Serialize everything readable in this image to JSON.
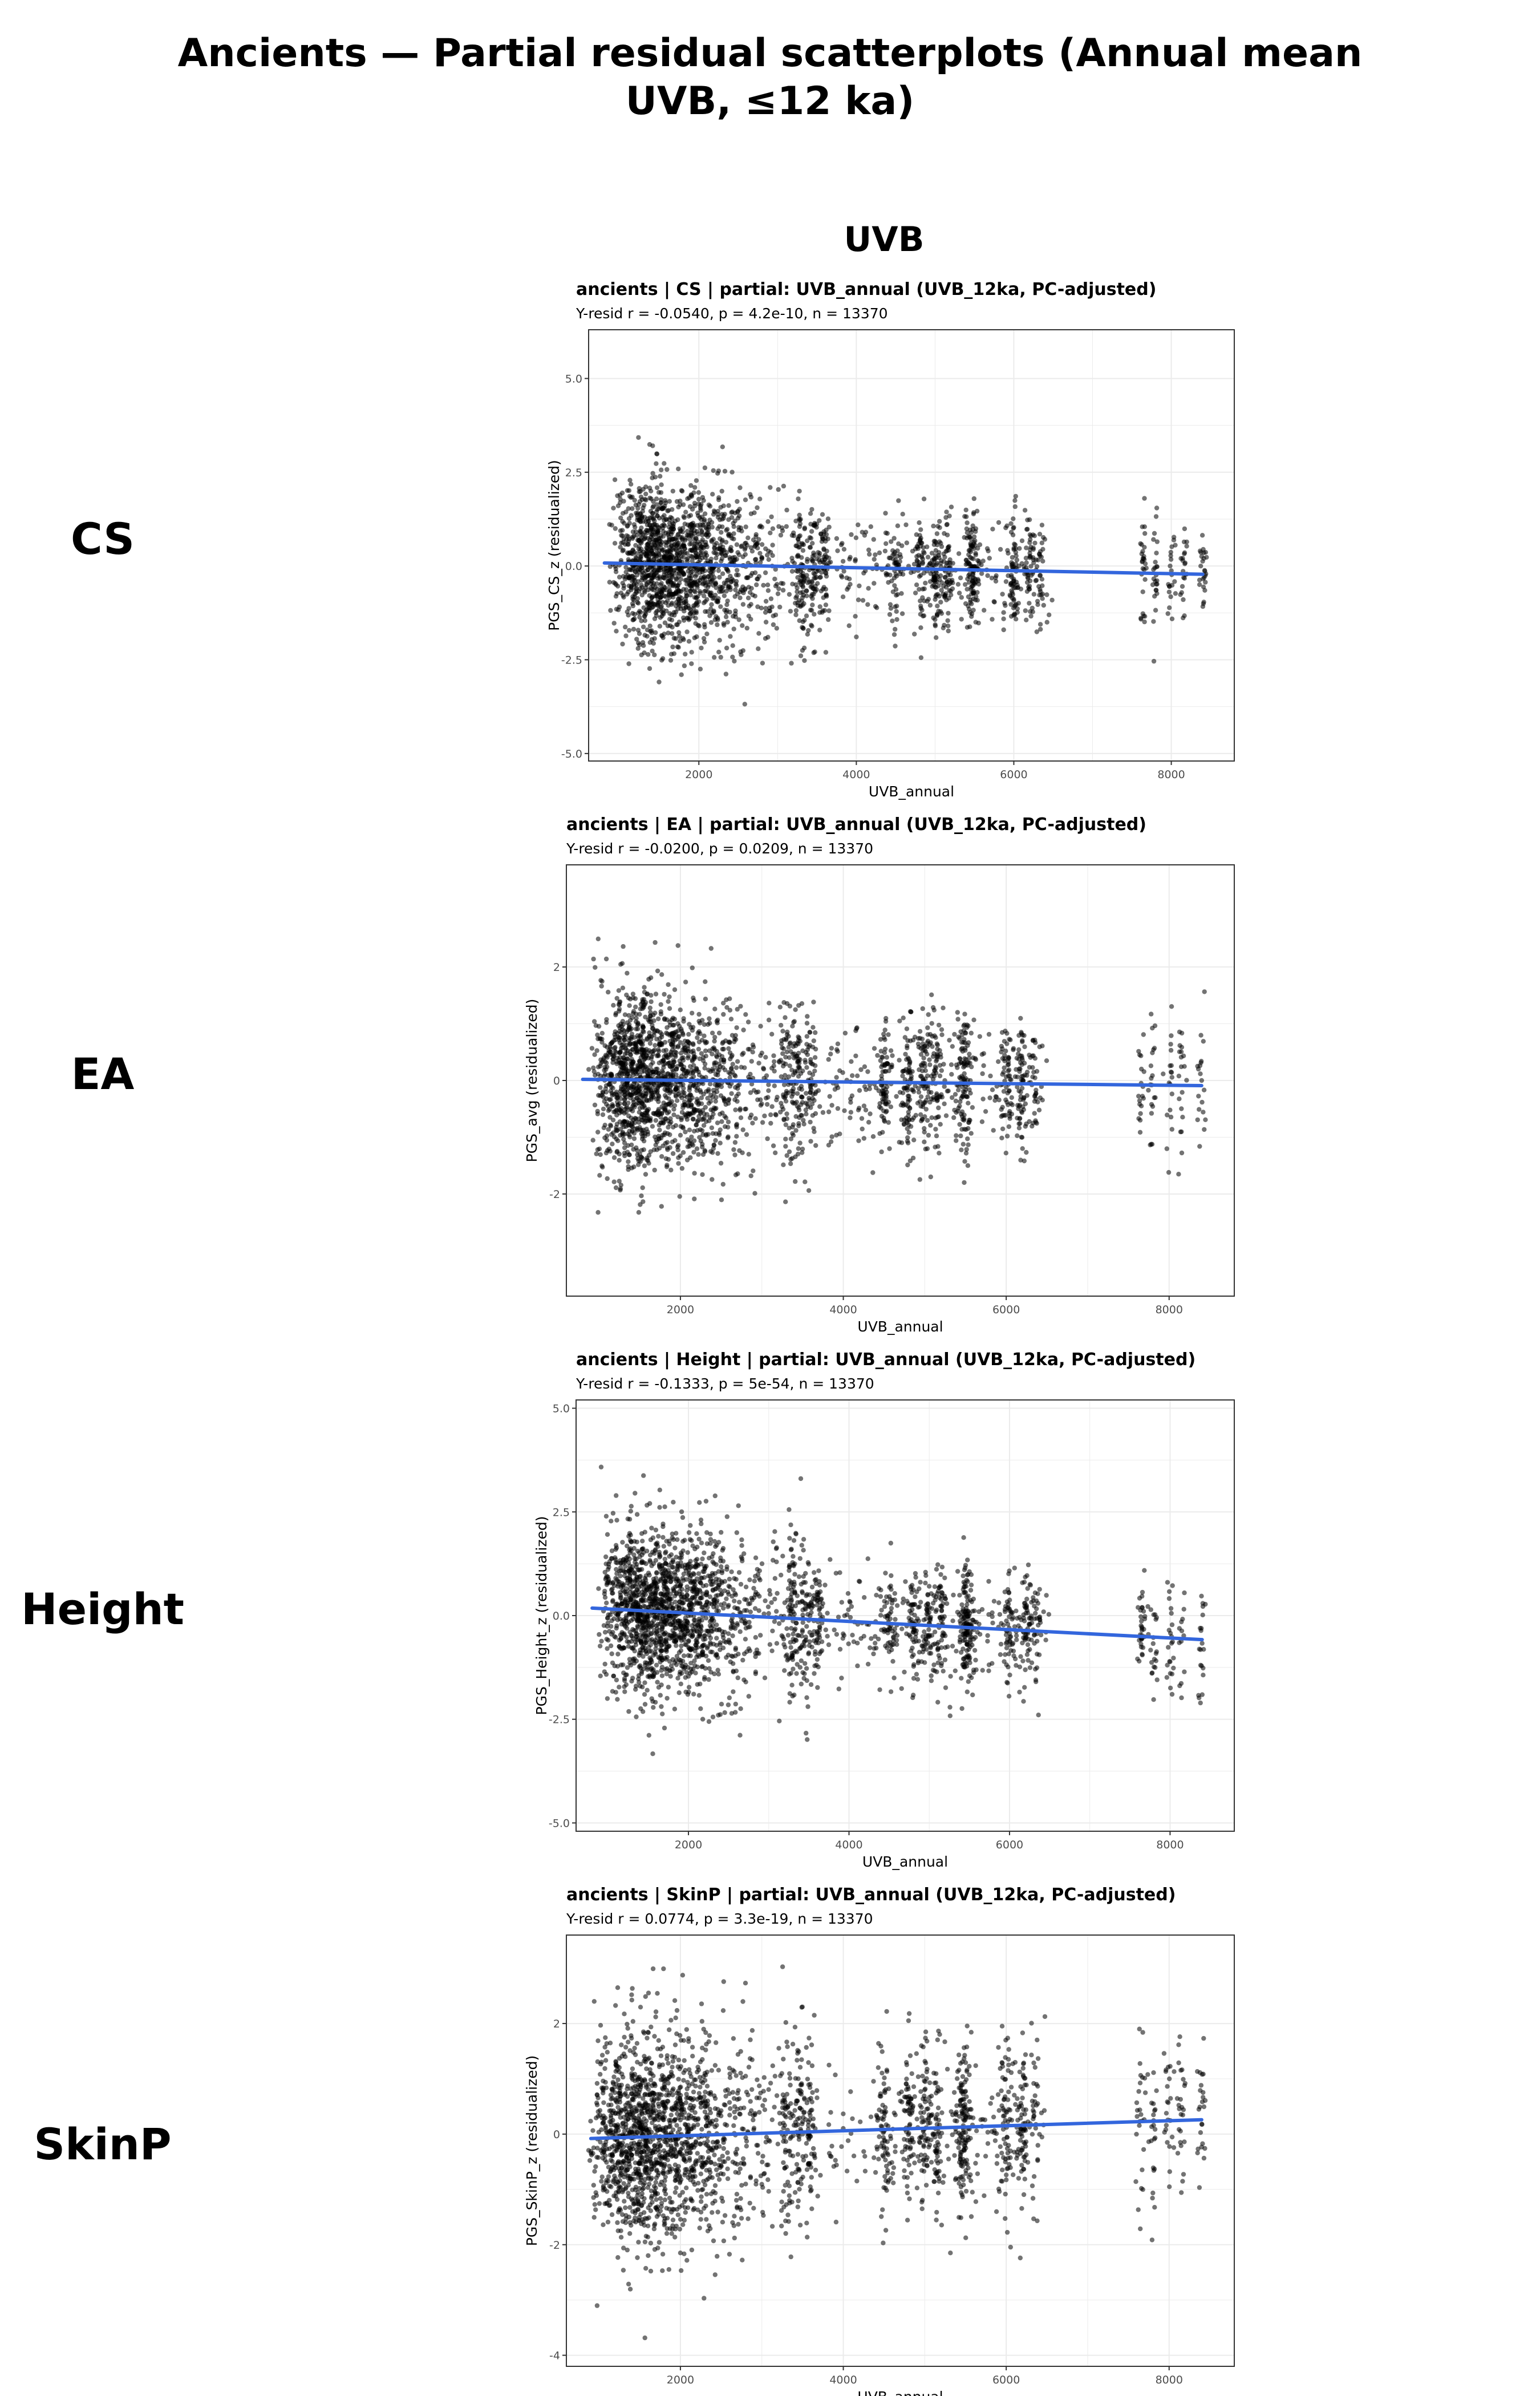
{
  "title_line1": "Ancients — Partial residual scatterplots (Annual mean",
  "title_line2": "UVB, ≤12 ka)",
  "column_title": "UVB",
  "colors": {
    "points": "#000000",
    "fit_line": "#3366dd",
    "grid": "#ebebeb",
    "panel_border": "#333333"
  },
  "chart_data": [
    {
      "type": "scatter",
      "row_label": "CS",
      "title": "ancients | CS | partial: UVB_annual (UVB_12ka, PC-adjusted)",
      "subtitle": "Y-resid r = -0.0540, p = 4.2e-10, n = 13370",
      "xlabel": "UVB_annual",
      "ylabel": "PGS_CS_z (residualized)",
      "xlim": [
        600,
        8800
      ],
      "ylim": [
        -5.2,
        6.3
      ],
      "xticks": [
        2000,
        4000,
        6000,
        8000
      ],
      "yticks": [
        -5.0,
        -2.5,
        0.0,
        2.5,
        5.0
      ],
      "ytick_labels": [
        "-5.0",
        "-2.5",
        "0.0",
        "2.5",
        "5.0"
      ],
      "fit": {
        "x": [
          800,
          8400
        ],
        "y": [
          0.08,
          -0.22
        ]
      },
      "spread": {
        "low_x": 1.05,
        "high_x": 0.75
      }
    },
    {
      "type": "scatter",
      "row_label": "EA",
      "title": "ancients | EA | partial: UVB_annual (UVB_12ka, PC-adjusted)",
      "subtitle": "Y-resid r = -0.0200, p = 0.0209, n = 13370",
      "xlabel": "UVB_annual",
      "ylabel": "PGS_avg (residualized)",
      "xlim": [
        600,
        8800
      ],
      "ylim": [
        -3.8,
        3.8
      ],
      "xticks": [
        2000,
        4000,
        6000,
        8000
      ],
      "yticks": [
        -2,
        0,
        2
      ],
      "ytick_labels": [
        "-2",
        "0",
        "2"
      ],
      "fit": {
        "x": [
          800,
          8400
        ],
        "y": [
          0.02,
          -0.09
        ]
      },
      "spread": {
        "low_x": 0.75,
        "high_x": 0.6
      }
    },
    {
      "type": "scatter",
      "row_label": "Height",
      "title": "ancients | Height | partial: UVB_annual (UVB_12ka, PC-adjusted)",
      "subtitle": "Y-resid r = -0.1333, p = 5e-54, n = 13370",
      "xlabel": "UVB_annual",
      "ylabel": "PGS_Height_z (residualized)",
      "xlim": [
        600,
        8800
      ],
      "ylim": [
        -5.2,
        5.2
      ],
      "xticks": [
        2000,
        4000,
        6000,
        8000
      ],
      "yticks": [
        -5.0,
        -2.5,
        0.0,
        2.5,
        5.0
      ],
      "ytick_labels": [
        "-5.0",
        "-2.5",
        "0.0",
        "2.5",
        "5.0"
      ],
      "fit": {
        "x": [
          800,
          8400
        ],
        "y": [
          0.18,
          -0.58
        ]
      },
      "spread": {
        "low_x": 1.0,
        "high_x": 0.7
      }
    },
    {
      "type": "scatter",
      "row_label": "SkinP",
      "title": "ancients | SkinP | partial: UVB_annual (UVB_12ka, PC-adjusted)",
      "subtitle": "Y-resid r = 0.0774, p = 3.3e-19, n = 13370",
      "xlabel": "UVB_annual",
      "ylabel": "PGS_SkinP_z (residualized)",
      "xlim": [
        600,
        8800
      ],
      "ylim": [
        -4.2,
        3.6
      ],
      "xticks": [
        2000,
        4000,
        6000,
        8000
      ],
      "yticks": [
        -4,
        -2,
        0,
        2
      ],
      "ytick_labels": [
        "-4",
        "-2",
        "0",
        "2"
      ],
      "fit": {
        "x": [
          900,
          8400
        ],
        "y": [
          -0.08,
          0.26
        ]
      },
      "spread": {
        "low_x": 0.95,
        "high_x": 0.75
      }
    }
  ]
}
